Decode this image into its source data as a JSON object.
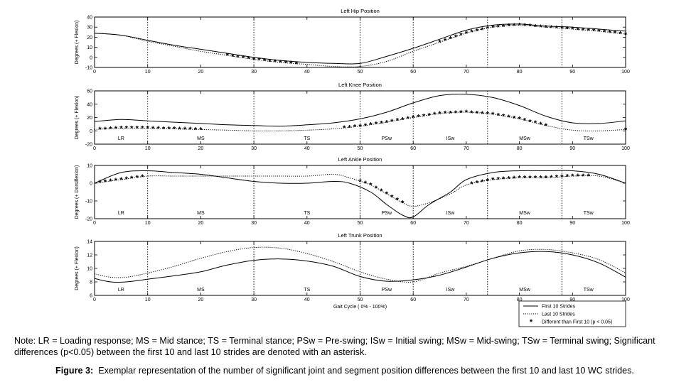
{
  "chart_data": [
    {
      "type": "line",
      "title": "Left Hip Position",
      "ylabel": "Degrees (+ Flexion)",
      "xlim": [
        0,
        100
      ],
      "ylim": [
        -10,
        40
      ],
      "yticks": [
        -10,
        0,
        10,
        20,
        30,
        40
      ],
      "xticks": [
        0,
        10,
        20,
        30,
        40,
        50,
        60,
        70,
        80,
        90,
        100
      ],
      "phase_lines": [
        10,
        30,
        50,
        60,
        74,
        88
      ],
      "phase_labels": [],
      "series": [
        {
          "name": "First 10 Strides",
          "style": "solid",
          "x": [
            0,
            5,
            10,
            15,
            20,
            25,
            30,
            35,
            40,
            45,
            50,
            55,
            60,
            65,
            70,
            75,
            80,
            85,
            90,
            95,
            100
          ],
          "y": [
            24,
            22,
            17,
            12,
            8,
            4,
            0,
            -3,
            -5,
            -6,
            -6,
            1,
            9,
            18,
            27,
            32,
            33,
            31,
            30,
            28,
            26
          ]
        },
        {
          "name": "Last 10 Strides",
          "style": "dotted",
          "x": [
            0,
            5,
            10,
            15,
            20,
            25,
            30,
            35,
            40,
            45,
            50,
            55,
            60,
            65,
            70,
            75,
            80,
            85,
            90,
            95,
            100
          ],
          "y": [
            24,
            22,
            16,
            11,
            6,
            2,
            -2,
            -5,
            -7,
            -9,
            -9,
            -4,
            6,
            15,
            24,
            30,
            32,
            30,
            28,
            26,
            23
          ]
        }
      ],
      "significant_x": [
        25,
        26,
        27,
        28,
        29,
        30,
        31,
        32,
        33,
        34,
        35,
        36,
        37,
        38,
        65,
        66,
        67,
        68,
        69,
        70,
        71,
        72,
        73,
        74,
        75,
        76,
        77,
        78,
        79,
        80,
        81,
        82,
        83,
        84,
        85,
        86,
        87,
        88,
        89,
        90,
        91,
        92,
        93,
        94,
        95,
        96,
        97,
        98,
        99,
        100
      ]
    },
    {
      "type": "line",
      "title": "Left Knee Position",
      "ylabel": "Degrees (+ Flexion)",
      "xlim": [
        0,
        100
      ],
      "ylim": [
        -20,
        60
      ],
      "yticks": [
        -20,
        0,
        20,
        40,
        60
      ],
      "xticks": [
        0,
        10,
        20,
        30,
        40,
        50,
        60,
        70,
        80,
        90,
        100
      ],
      "phase_lines": [
        10,
        30,
        50,
        60,
        74,
        88
      ],
      "phase_labels": [
        {
          "x": 5,
          "text": "LR"
        },
        {
          "x": 20,
          "text": "MS"
        },
        {
          "x": 40,
          "text": "TS"
        },
        {
          "x": 55,
          "text": "PSw"
        },
        {
          "x": 67,
          "text": "ISw"
        },
        {
          "x": 81,
          "text": "MSw"
        },
        {
          "x": 93,
          "text": "TSw"
        }
      ],
      "series": [
        {
          "name": "First 10 Strides",
          "style": "solid",
          "x": [
            0,
            5,
            10,
            15,
            20,
            25,
            30,
            35,
            40,
            45,
            50,
            55,
            60,
            65,
            70,
            75,
            80,
            85,
            90,
            95,
            100
          ],
          "y": [
            14,
            17,
            15,
            13,
            11,
            9,
            8,
            7,
            9,
            12,
            18,
            28,
            42,
            53,
            55,
            50,
            38,
            22,
            12,
            11,
            15
          ]
        },
        {
          "name": "Last 10 Strides",
          "style": "dotted",
          "x": [
            0,
            5,
            10,
            15,
            20,
            25,
            30,
            35,
            40,
            45,
            50,
            55,
            60,
            65,
            70,
            75,
            80,
            85,
            90,
            95,
            100
          ],
          "y": [
            2,
            4,
            4,
            3,
            2,
            1,
            0,
            0,
            1,
            3,
            7,
            13,
            20,
            26,
            28,
            25,
            18,
            8,
            1,
            0,
            2
          ]
        }
      ],
      "significant_x": [
        1,
        2,
        3,
        4,
        5,
        6,
        7,
        8,
        9,
        10,
        11,
        12,
        13,
        14,
        15,
        16,
        17,
        18,
        19,
        20,
        47,
        48,
        49,
        50,
        51,
        52,
        53,
        54,
        55,
        56,
        57,
        58,
        59,
        60,
        61,
        62,
        63,
        64,
        65,
        66,
        67,
        68,
        69,
        70,
        71,
        72,
        73,
        74,
        75,
        76,
        77,
        78,
        79,
        80,
        81,
        82,
        83,
        84,
        85,
        100
      ]
    },
    {
      "type": "line",
      "title": "Left Ankle Position",
      "ylabel": "Degrees (+ Dorsiflexion)",
      "xlim": [
        0,
        100
      ],
      "ylim": [
        -20,
        10
      ],
      "yticks": [
        -20,
        -10,
        0,
        10
      ],
      "xticks": [
        0,
        10,
        20,
        30,
        40,
        50,
        60,
        70,
        80,
        90,
        100
      ],
      "phase_lines": [
        10,
        30,
        50,
        60,
        74,
        88
      ],
      "phase_labels": [
        {
          "x": 5,
          "text": "LR"
        },
        {
          "x": 20,
          "text": "MS"
        },
        {
          "x": 40,
          "text": "TS"
        },
        {
          "x": 55,
          "text": "PSw"
        },
        {
          "x": 67,
          "text": "ISw"
        },
        {
          "x": 81,
          "text": "MSw"
        },
        {
          "x": 93,
          "text": "TSw"
        }
      ],
      "series": [
        {
          "name": "First 10 Strides",
          "style": "solid",
          "x": [
            0,
            5,
            10,
            15,
            20,
            25,
            30,
            35,
            40,
            45,
            48,
            52,
            55,
            58,
            60,
            63,
            67,
            70,
            75,
            80,
            85,
            90,
            95,
            100
          ],
          "y": [
            0,
            6,
            7,
            6,
            5,
            3,
            1,
            0,
            0,
            1,
            0,
            -5,
            -12,
            -18,
            -19,
            -12,
            -5,
            2,
            6,
            7,
            7,
            7,
            5,
            0
          ]
        },
        {
          "name": "Last 10 Strides",
          "style": "dotted",
          "x": [
            0,
            5,
            10,
            15,
            20,
            25,
            30,
            35,
            40,
            45,
            48,
            52,
            55,
            58,
            60,
            63,
            67,
            70,
            75,
            80,
            85,
            90,
            95,
            100
          ],
          "y": [
            0,
            2,
            4,
            4,
            4,
            4,
            4,
            4,
            4,
            5,
            3,
            -1,
            -6,
            -11,
            -13,
            -11,
            -6,
            -1,
            2,
            3,
            3,
            4,
            4,
            0
          ]
        }
      ],
      "significant_x": [
        1,
        2,
        3,
        4,
        5,
        6,
        7,
        8,
        9,
        50,
        51,
        52,
        53,
        54,
        55,
        56,
        57,
        58,
        71,
        72,
        73,
        74,
        75,
        76,
        77,
        78,
        79,
        80,
        81,
        82,
        83,
        84,
        85,
        86,
        87,
        88,
        89,
        90,
        91,
        92,
        93
      ]
    },
    {
      "type": "line",
      "title": "Left Trunk Position",
      "ylabel": "Degrees (+ Flexion)",
      "xlabel": "Gait Cycle ( 0% - 100%)",
      "xlim": [
        0,
        100
      ],
      "ylim": [
        6,
        14
      ],
      "yticks": [
        6,
        8,
        10,
        12,
        14
      ],
      "xticks": [
        0,
        10,
        20,
        30,
        40,
        50,
        60,
        70,
        80,
        90,
        100
      ],
      "phase_lines": [
        10,
        30,
        50,
        60,
        74,
        88
      ],
      "phase_labels": [
        {
          "x": 5,
          "text": "LR"
        },
        {
          "x": 20,
          "text": "MS"
        },
        {
          "x": 40,
          "text": "TS"
        },
        {
          "x": 55,
          "text": "PSw"
        },
        {
          "x": 67,
          "text": "ISw"
        },
        {
          "x": 81,
          "text": "MSw"
        },
        {
          "x": 93,
          "text": "TSw"
        }
      ],
      "series": [
        {
          "name": "First 10 Strides",
          "style": "solid",
          "x": [
            0,
            3,
            6,
            10,
            15,
            20,
            25,
            30,
            35,
            40,
            45,
            50,
            55,
            60,
            65,
            70,
            75,
            80,
            85,
            90,
            95,
            100
          ],
          "y": [
            8.5,
            8,
            8,
            8.4,
            8.9,
            9.5,
            10.5,
            11.2,
            11.4,
            11.1,
            10.3,
            8.8,
            8.1,
            8.3,
            9,
            10.2,
            11.5,
            12.3,
            12.5,
            12,
            10.8,
            8.7
          ]
        },
        {
          "name": "Last 10 Strides",
          "style": "dotted",
          "x": [
            0,
            3,
            6,
            10,
            15,
            20,
            25,
            30,
            35,
            40,
            45,
            50,
            55,
            60,
            65,
            70,
            75,
            80,
            85,
            90,
            95,
            100
          ],
          "y": [
            9.2,
            8.7,
            8.7,
            9.3,
            10.3,
            11.5,
            12.5,
            13.1,
            13,
            12.2,
            11,
            9.5,
            8.4,
            8,
            9.3,
            10.3,
            11.5,
            12.6,
            12.8,
            12.3,
            11.3,
            9.3
          ]
        }
      ],
      "significant_x": []
    }
  ],
  "legend": {
    "items": [
      {
        "label": "First 10 Strides",
        "style": "solid"
      },
      {
        "label": "Last 10 Strides",
        "style": "dotted"
      },
      {
        "label": "Different than First 10 (p < 0.05)",
        "style": "asterisk"
      }
    ],
    "placement": "bottom-right"
  },
  "note": "Note: LR = Loading response; MS = Mid stance; TS = Terminal stance; PSw = Pre-swing; ISw = Initial swing; MSw = Mid-swing; TSw = Terminal swing; Significant differences (p<0.05) between the first 10 and last 10 strides are denoted with an asterisk.",
  "caption": {
    "label": "Figure 3:",
    "text": "Exemplar representation of the number of significant joint and segment position differences between the first 10 and last 10 WC strides."
  }
}
